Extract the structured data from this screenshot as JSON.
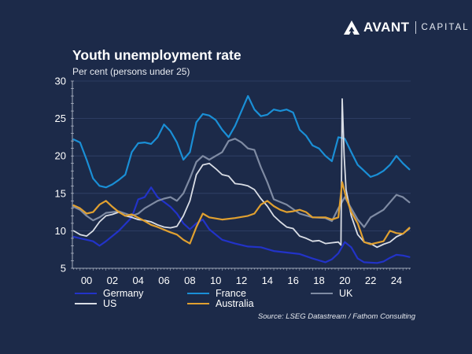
{
  "brand": {
    "name": "AVANT",
    "sub": "CAPITAL",
    "logo_icon": "avant-mark-icon"
  },
  "colors": {
    "background": "#1c2a49",
    "grid": "#33436a",
    "axis": "#c9cfdb"
  },
  "chart_data": {
    "type": "line",
    "title": "Youth unemployment rate",
    "subtitle": "Per cent (persons under 25)",
    "xlabel": "",
    "ylabel": "",
    "xlim": [
      1999.4,
      2025.6
    ],
    "ylim": [
      5,
      30
    ],
    "yticks": [
      "5",
      "10",
      "15",
      "20",
      "25",
      "30"
    ],
    "ytick_values": [
      5,
      10,
      15,
      20,
      25,
      30
    ],
    "xticks": [
      "00",
      "02",
      "04",
      "06",
      "08",
      "10",
      "12",
      "14",
      "16",
      "18",
      "20",
      "22",
      "24"
    ],
    "xtick_values": [
      2000.5,
      2002.5,
      2004.5,
      2006.5,
      2008.5,
      2010.5,
      2012.5,
      2014.5,
      2016.5,
      2018.5,
      2020.5,
      2022.5,
      2024.5
    ],
    "grid": true,
    "legend_position": "bottom",
    "source": "Source: LSEG Datastream / Fathom Consulting",
    "series": [
      {
        "name": "Germany",
        "color": "#2233c8",
        "x": [
          1999.5,
          2000,
          2001,
          2001.5,
          2002,
          2003,
          2004,
          2004.5,
          2005,
          2005.5,
          2006,
          2007,
          2007.5,
          2008,
          2008.5,
          2009,
          2009.5,
          2010,
          2011,
          2012,
          2013,
          2014,
          2015,
          2016,
          2017,
          2018,
          2019,
          2019.5,
          2020,
          2020.5,
          2021,
          2021.5,
          2022,
          2023,
          2023.5,
          2024,
          2024.5,
          2025,
          2025.5
        ],
        "y": [
          9.2,
          9.0,
          8.6,
          8.0,
          8.6,
          10.0,
          11.8,
          14.2,
          14.5,
          15.8,
          14.5,
          13.2,
          12.3,
          11.0,
          10.2,
          11.0,
          11.5,
          10.2,
          8.8,
          8.3,
          7.9,
          7.8,
          7.3,
          7.1,
          6.9,
          6.3,
          5.8,
          6.2,
          7.0,
          8.5,
          7.8,
          6.3,
          5.8,
          5.7,
          5.9,
          6.4,
          6.8,
          6.7,
          6.5
        ]
      },
      {
        "name": "France",
        "color": "#1a8fd6",
        "x": [
          1999.5,
          2000,
          2000.5,
          2001,
          2001.5,
          2002,
          2002.5,
          2003,
          2003.5,
          2004,
          2004.5,
          2005,
          2005.5,
          2006,
          2006.5,
          2007,
          2007.5,
          2008,
          2008.5,
          2009,
          2009.5,
          2010,
          2010.5,
          2011,
          2011.5,
          2012,
          2012.5,
          2013,
          2013.5,
          2014,
          2014.5,
          2015,
          2015.5,
          2016,
          2016.5,
          2017,
          2017.5,
          2018,
          2018.5,
          2019,
          2019.5,
          2020,
          2020.5,
          2021,
          2021.5,
          2022,
          2022.5,
          2023,
          2023.5,
          2024,
          2024.5,
          2025,
          2025.5
        ],
        "y": [
          22.2,
          21.8,
          19.5,
          17.0,
          16.0,
          15.8,
          16.2,
          16.8,
          17.5,
          20.5,
          21.7,
          21.8,
          21.6,
          22.5,
          24.2,
          23.3,
          21.8,
          19.5,
          20.5,
          24.5,
          25.6,
          25.4,
          24.8,
          23.5,
          22.5,
          24.0,
          26.0,
          28.0,
          26.2,
          25.3,
          25.5,
          26.2,
          26.0,
          26.2,
          25.8,
          23.5,
          22.7,
          21.4,
          21.0,
          20.0,
          19.3,
          22.5,
          22.3,
          20.5,
          18.8,
          18.0,
          17.2,
          17.5,
          18.0,
          18.8,
          20.0,
          19.0,
          18.2
        ]
      },
      {
        "name": "UK",
        "color": "#7f8ba3",
        "x": [
          1999.5,
          2000,
          2000.5,
          2001,
          2001.5,
          2002,
          2003,
          2004,
          2004.5,
          2005,
          2006,
          2006.5,
          2007,
          2007.5,
          2008,
          2008.5,
          2009,
          2009.5,
          2010,
          2010.5,
          2011,
          2011.5,
          2012,
          2012.5,
          2013,
          2013.5,
          2014,
          2014.5,
          2015,
          2016,
          2017,
          2018,
          2019,
          2019.5,
          2020,
          2020.5,
          2021,
          2021.5,
          2022,
          2022.5,
          2023,
          2023.5,
          2024,
          2024.5,
          2025,
          2025.5
        ],
        "y": [
          13.2,
          12.8,
          12.0,
          11.4,
          11.8,
          12.4,
          12.6,
          12.0,
          12.3,
          13.0,
          14.0,
          14.3,
          14.5,
          14.0,
          15.0,
          17.0,
          19.2,
          20.0,
          19.5,
          20.0,
          20.5,
          22.0,
          22.3,
          21.8,
          21.0,
          20.8,
          18.5,
          16.5,
          14.2,
          13.5,
          12.3,
          11.8,
          11.7,
          11.3,
          13.0,
          14.5,
          13.0,
          11.5,
          10.5,
          11.8,
          12.3,
          12.8,
          13.8,
          14.8,
          14.5,
          13.8
        ]
      },
      {
        "name": "US",
        "color": "#d9dde5",
        "x": [
          1999.5,
          2000,
          2000.5,
          2001,
          2001.5,
          2002,
          2002.5,
          2003,
          2003.5,
          2004,
          2004.5,
          2005,
          2005.5,
          2006,
          2006.5,
          2007,
          2007.5,
          2008,
          2008.5,
          2009,
          2009.5,
          2010,
          2010.5,
          2011,
          2011.5,
          2012,
          2012.5,
          2013,
          2013.5,
          2014,
          2014.5,
          2015,
          2015.5,
          2016,
          2016.5,
          2017,
          2017.5,
          2018,
          2018.5,
          2019,
          2019.5,
          2020,
          2020.2,
          2020.3,
          2020.45,
          2020.6,
          2021,
          2021.5,
          2022,
          2022.5,
          2023,
          2023.5,
          2024,
          2024.5,
          2025,
          2025.5
        ],
        "y": [
          10.0,
          9.5,
          9.3,
          10.0,
          11.2,
          12.0,
          12.2,
          12.5,
          12.0,
          11.8,
          11.5,
          11.4,
          11.2,
          10.8,
          10.5,
          10.4,
          10.6,
          12.0,
          14.0,
          17.5,
          18.8,
          19.0,
          18.3,
          17.5,
          17.3,
          16.3,
          16.2,
          16.0,
          15.5,
          14.3,
          13.3,
          12.0,
          11.2,
          10.5,
          10.3,
          9.3,
          9.0,
          8.6,
          8.7,
          8.3,
          8.4,
          8.5,
          8.1,
          27.6,
          20.0,
          15.5,
          12.0,
          9.5,
          8.5,
          8.3,
          7.8,
          8.2,
          8.5,
          9.2,
          9.6,
          10.3
        ]
      },
      {
        "name": "Australia",
        "color": "#e0a030",
        "x": [
          1999.5,
          2000,
          2000.5,
          2001,
          2001.5,
          2002,
          2002.5,
          2003,
          2003.5,
          2004,
          2005,
          2005.5,
          2006,
          2007,
          2007.5,
          2008,
          2008.5,
          2009,
          2009.5,
          2010,
          2011,
          2012,
          2013,
          2013.5,
          2014,
          2014.5,
          2015,
          2015.5,
          2016,
          2016.5,
          2017,
          2017.5,
          2018,
          2018.5,
          2019,
          2019.5,
          2020,
          2020.3,
          2020.6,
          2021,
          2021.5,
          2022,
          2022.5,
          2023,
          2023.5,
          2024,
          2024.5,
          2025,
          2025.5
        ],
        "y": [
          13.4,
          13.0,
          12.3,
          12.5,
          13.5,
          14.0,
          13.2,
          12.5,
          12.0,
          12.2,
          11.3,
          10.8,
          10.5,
          9.8,
          9.5,
          8.8,
          8.3,
          10.5,
          12.3,
          11.8,
          11.5,
          11.7,
          12.0,
          12.3,
          13.5,
          14.0,
          13.3,
          12.8,
          12.5,
          12.6,
          12.8,
          12.5,
          11.8,
          11.8,
          11.8,
          11.5,
          11.8,
          16.5,
          14.5,
          12.5,
          11.0,
          8.5,
          8.2,
          8.4,
          8.6,
          10.0,
          9.7,
          9.6,
          10.4
        ]
      }
    ]
  }
}
